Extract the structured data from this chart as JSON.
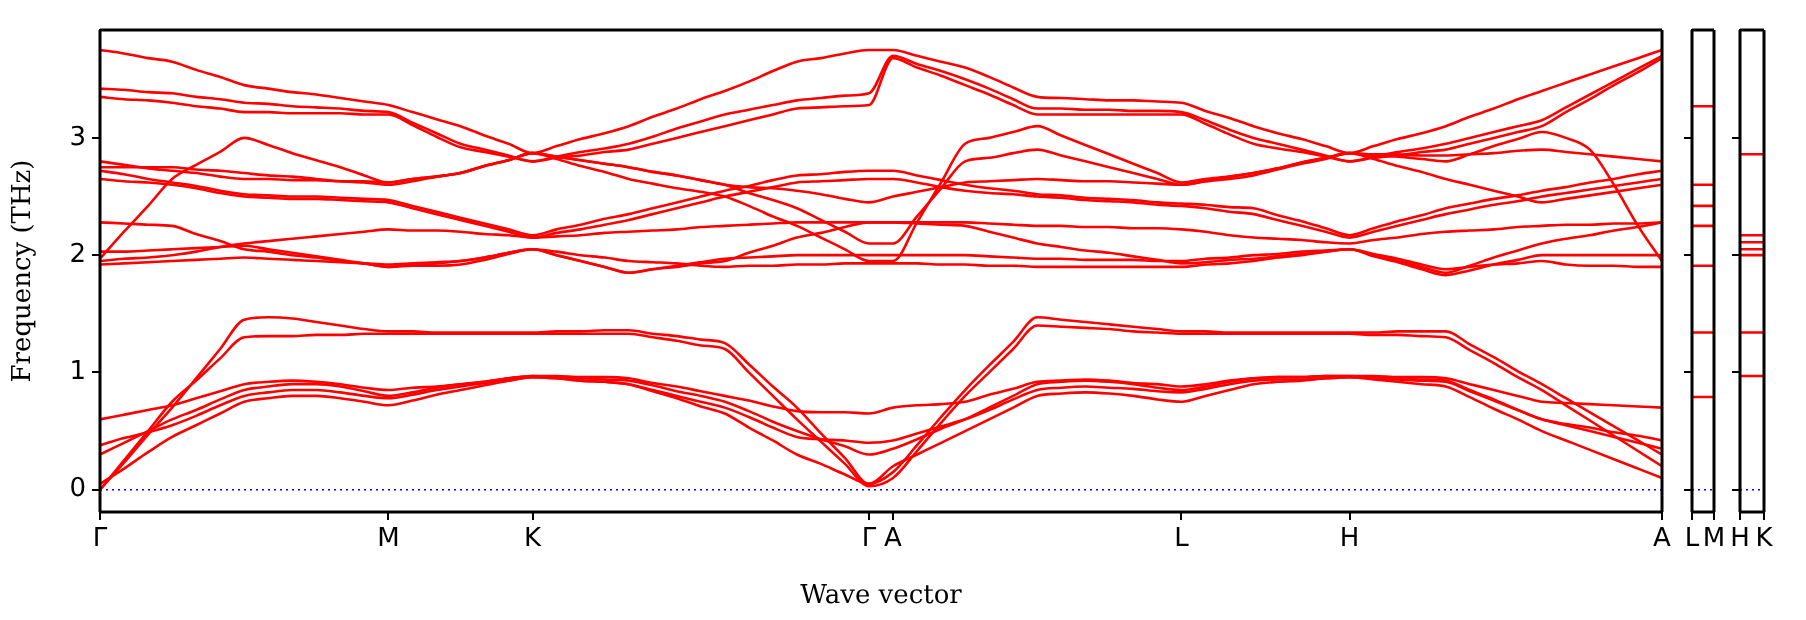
{
  "chart_data": [
    {
      "type": "line",
      "xlabel": "Wave vector",
      "ylabel": "Frequency (THz)",
      "ylim": [
        -0.19,
        3.92
      ],
      "yticks": [
        0,
        1,
        2,
        3
      ],
      "categories": [
        "Γ",
        null,
        null,
        null,
        null,
        null,
        null,
        null,
        null,
        null,
        null,
        null,
        "M",
        null,
        null,
        null,
        null,
        null,
        "K",
        null,
        null,
        null,
        null,
        null,
        null,
        null,
        null,
        null,
        null,
        null,
        null,
        null,
        "Γ",
        "A",
        null,
        null,
        null,
        null,
        null,
        null,
        null,
        null,
        null,
        null,
        null,
        "L",
        null,
        null,
        null,
        null,
        null,
        null,
        "H",
        null,
        null,
        null,
        null,
        null,
        null,
        null,
        null,
        null,
        null,
        null,
        null,
        "A"
      ],
      "ref_lines": [
        {
          "axis": "y",
          "value": 0,
          "color": "#0000ff",
          "line_style": "dotted"
        }
      ],
      "series": [
        {
          "color": "#ff0000",
          "values": [
            0,
            0.25,
            0.5,
            0.75,
            0.93,
            1.12,
            1.3,
            1.31,
            1.31,
            1.32,
            1.32,
            1.33,
            1.33,
            1.33,
            1.33,
            1.33,
            1.33,
            1.33,
            1.33,
            1.33,
            1.33,
            1.33,
            1.33,
            1.3,
            1.27,
            1.23,
            1.2,
            1.0,
            0.8,
            0.6,
            0.41,
            0.22,
            0.03,
            0.1,
            0.33,
            0.57,
            0.8,
            1.0,
            1.2,
            1.4,
            1.39,
            1.38,
            1.37,
            1.35,
            1.34,
            1.33,
            1.33,
            1.33,
            1.33,
            1.33,
            1.33,
            1.33,
            1.33,
            1.32,
            1.32,
            1.31,
            1.3,
            1.19,
            1.08,
            0.96,
            0.85,
            0.72,
            0.59,
            0.46,
            0.33,
            0.2
          ]
        },
        {
          "color": "#ff0000",
          "values": [
            0,
            0.23,
            0.47,
            0.7,
            0.95,
            1.2,
            1.45,
            1.47,
            1.46,
            1.43,
            1.4,
            1.37,
            1.35,
            1.35,
            1.34,
            1.34,
            1.34,
            1.34,
            1.34,
            1.35,
            1.35,
            1.36,
            1.36,
            1.33,
            1.31,
            1.28,
            1.25,
            1.07,
            0.88,
            0.7,
            0.48,
            0.27,
            0.05,
            0.15,
            0.38,
            0.62,
            0.85,
            1.06,
            1.26,
            1.47,
            1.45,
            1.43,
            1.41,
            1.39,
            1.37,
            1.35,
            1.35,
            1.34,
            1.34,
            1.34,
            1.34,
            1.34,
            1.34,
            1.34,
            1.35,
            1.35,
            1.35,
            1.24,
            1.13,
            1.01,
            0.9,
            0.78,
            0.66,
            0.54,
            0.42,
            0.3
          ]
        },
        {
          "color": "#ff0000",
          "values": [
            0.3,
            0.4,
            0.5,
            0.6,
            0.68,
            0.77,
            0.85,
            0.88,
            0.9,
            0.9,
            0.88,
            0.84,
            0.8,
            0.83,
            0.87,
            0.9,
            0.92,
            0.95,
            0.97,
            0.96,
            0.95,
            0.94,
            0.93,
            0.89,
            0.84,
            0.8,
            0.75,
            0.67,
            0.58,
            0.5,
            0.43,
            0.37,
            0.3,
            0.35,
            0.43,
            0.52,
            0.6,
            0.7,
            0.8,
            0.9,
            0.92,
            0.93,
            0.92,
            0.9,
            0.87,
            0.85,
            0.88,
            0.92,
            0.95,
            0.96,
            0.96,
            0.97,
            0.97,
            0.96,
            0.95,
            0.94,
            0.93,
            0.85,
            0.77,
            0.68,
            0.6,
            0.55,
            0.5,
            0.45,
            0.4,
            0.35
          ]
        },
        {
          "color": "#ff0000",
          "values": [
            0.05,
            0.18,
            0.32,
            0.45,
            0.55,
            0.65,
            0.75,
            0.78,
            0.8,
            0.8,
            0.78,
            0.75,
            0.72,
            0.76,
            0.81,
            0.85,
            0.89,
            0.93,
            0.96,
            0.95,
            0.93,
            0.92,
            0.9,
            0.84,
            0.78,
            0.71,
            0.65,
            0.53,
            0.42,
            0.3,
            0.22,
            0.13,
            0.05,
            0.2,
            0.3,
            0.4,
            0.5,
            0.6,
            0.7,
            0.8,
            0.82,
            0.83,
            0.82,
            0.8,
            0.77,
            0.75,
            0.8,
            0.85,
            0.9,
            0.92,
            0.93,
            0.95,
            0.96,
            0.94,
            0.92,
            0.9,
            0.88,
            0.79,
            0.69,
            0.6,
            0.5,
            0.42,
            0.34,
            0.26,
            0.18,
            0.1
          ]
        },
        {
          "color": "#ff0000",
          "values": [
            0.6,
            0.64,
            0.68,
            0.72,
            0.78,
            0.84,
            0.9,
            0.92,
            0.93,
            0.92,
            0.9,
            0.87,
            0.85,
            0.87,
            0.88,
            0.9,
            0.92,
            0.95,
            0.97,
            0.97,
            0.96,
            0.96,
            0.95,
            0.91,
            0.88,
            0.84,
            0.8,
            0.76,
            0.71,
            0.67,
            0.66,
            0.66,
            0.65,
            0.7,
            0.72,
            0.73,
            0.75,
            0.81,
            0.86,
            0.92,
            0.93,
            0.94,
            0.93,
            0.91,
            0.9,
            0.88,
            0.9,
            0.93,
            0.95,
            0.96,
            0.96,
            0.97,
            0.97,
            0.97,
            0.96,
            0.96,
            0.95,
            0.9,
            0.85,
            0.8,
            0.75,
            0.74,
            0.73,
            0.72,
            0.71,
            0.7
          ]
        },
        {
          "color": "#ff0000",
          "values": [
            0.38,
            0.44,
            0.49,
            0.55,
            0.63,
            0.72,
            0.8,
            0.83,
            0.85,
            0.85,
            0.83,
            0.8,
            0.78,
            0.81,
            0.85,
            0.88,
            0.91,
            0.93,
            0.96,
            0.95,
            0.93,
            0.92,
            0.9,
            0.85,
            0.8,
            0.75,
            0.7,
            0.62,
            0.53,
            0.45,
            0.43,
            0.42,
            0.4,
            0.42,
            0.48,
            0.54,
            0.6,
            0.68,
            0.77,
            0.85,
            0.87,
            0.88,
            0.87,
            0.86,
            0.84,
            0.83,
            0.86,
            0.9,
            0.93,
            0.94,
            0.94,
            0.95,
            0.96,
            0.95,
            0.94,
            0.93,
            0.92,
            0.84,
            0.76,
            0.68,
            0.6,
            0.56,
            0.53,
            0.49,
            0.46,
            0.42
          ]
        },
        {
          "color": "#ff0000",
          "values": [
            1.92,
            1.93,
            1.94,
            1.95,
            1.96,
            1.97,
            1.98,
            1.97,
            1.96,
            1.95,
            1.94,
            1.93,
            1.92,
            1.93,
            1.94,
            1.95,
            1.98,
            2.02,
            2.05,
            2.03,
            2.0,
            1.98,
            1.95,
            1.94,
            1.93,
            1.91,
            1.9,
            1.91,
            1.91,
            1.92,
            1.92,
            1.93,
            1.93,
            1.93,
            1.93,
            1.92,
            1.92,
            1.91,
            1.91,
            1.9,
            1.9,
            1.9,
            1.9,
            1.9,
            1.9,
            1.9,
            1.92,
            1.93,
            1.95,
            1.98,
            2.0,
            2.03,
            2.05,
            2.01,
            1.97,
            1.92,
            1.88,
            1.9,
            1.92,
            1.93,
            1.95,
            1.92,
            1.91,
            1.91,
            1.9,
            1.9
          ]
        },
        {
          "color": "#ff0000",
          "values": [
            2.03,
            2.03,
            2.04,
            2.05,
            2.06,
            2.07,
            2.08,
            2.05,
            2.02,
            1.99,
            1.96,
            1.93,
            1.9,
            1.91,
            1.91,
            1.92,
            1.96,
            2.01,
            2.05,
            2.0,
            1.95,
            1.9,
            1.85,
            1.88,
            1.91,
            1.94,
            1.97,
            1.98,
            1.99,
            2.0,
            2.0,
            2.0,
            2.0,
            2.0,
            2.0,
            2.0,
            2.0,
            1.99,
            1.98,
            1.97,
            1.97,
            1.96,
            1.96,
            1.96,
            1.95,
            1.95,
            1.97,
            1.98,
            2.0,
            2.01,
            2.03,
            2.04,
            2.05,
            1.99,
            1.94,
            1.88,
            1.83,
            1.87,
            1.92,
            1.96,
            2.0,
            2.0,
            2.0,
            2.0,
            2.0,
            2.0
          ]
        },
        {
          "color": "#ff0000",
          "values": [
            2.28,
            2.27,
            2.26,
            2.25,
            2.18,
            2.12,
            2.05,
            2.03,
            2.0,
            1.98,
            1.95,
            1.93,
            1.9,
            1.92,
            1.93,
            1.95,
            1.98,
            2.02,
            2.05,
            2.0,
            1.95,
            1.9,
            1.85,
            1.88,
            1.9,
            1.93,
            1.95,
            2.02,
            2.08,
            2.15,
            2.19,
            2.24,
            2.28,
            2.28,
            2.27,
            2.26,
            2.25,
            2.2,
            2.15,
            2.1,
            2.07,
            2.04,
            2.02,
            1.99,
            1.96,
            1.93,
            1.94,
            1.96,
            1.97,
            1.99,
            2.01,
            2.03,
            2.05,
            2.0,
            1.95,
            1.9,
            1.85,
            1.91,
            1.98,
            2.04,
            2.1,
            2.14,
            2.17,
            2.21,
            2.24,
            2.28
          ]
        },
        {
          "color": "#ff0000",
          "values": [
            1.95,
            1.97,
            1.98,
            2.0,
            2.03,
            2.07,
            2.1,
            2.12,
            2.14,
            2.16,
            2.18,
            2.2,
            2.22,
            2.21,
            2.21,
            2.2,
            2.18,
            2.17,
            2.15,
            2.16,
            2.17,
            2.19,
            2.2,
            2.21,
            2.22,
            2.24,
            2.25,
            2.26,
            2.27,
            2.28,
            2.28,
            2.28,
            2.28,
            2.28,
            2.28,
            2.28,
            2.28,
            2.27,
            2.26,
            2.25,
            2.25,
            2.24,
            2.24,
            2.23,
            2.23,
            2.22,
            2.2,
            2.17,
            2.15,
            2.14,
            2.13,
            2.11,
            2.1,
            2.13,
            2.15,
            2.18,
            2.2,
            2.21,
            2.22,
            2.24,
            2.25,
            2.26,
            2.26,
            2.27,
            2.27,
            2.28
          ]
        },
        {
          "color": "#ff0000",
          "values": [
            2.65,
            2.63,
            2.62,
            2.6,
            2.57,
            2.53,
            2.5,
            2.49,
            2.48,
            2.48,
            2.47,
            2.46,
            2.45,
            2.4,
            2.35,
            2.3,
            2.25,
            2.2,
            2.15,
            2.19,
            2.22,
            2.26,
            2.3,
            2.35,
            2.4,
            2.45,
            2.5,
            2.54,
            2.58,
            2.62,
            2.63,
            2.64,
            2.65,
            2.65,
            2.62,
            2.58,
            2.55,
            2.53,
            2.52,
            2.5,
            2.49,
            2.47,
            2.46,
            2.45,
            2.43,
            2.42,
            2.4,
            2.37,
            2.35,
            2.3,
            2.25,
            2.2,
            2.15,
            2.2,
            2.25,
            2.3,
            2.35,
            2.39,
            2.43,
            2.46,
            2.5,
            2.53,
            2.56,
            2.59,
            2.62,
            2.65
          ]
        },
        {
          "color": "#ff0000",
          "values": [
            2.72,
            2.69,
            2.65,
            2.62,
            2.59,
            2.55,
            2.52,
            2.51,
            2.5,
            2.5,
            2.49,
            2.48,
            2.47,
            2.42,
            2.37,
            2.32,
            2.27,
            2.22,
            2.17,
            2.22,
            2.26,
            2.31,
            2.35,
            2.4,
            2.45,
            2.5,
            2.55,
            2.59,
            2.64,
            2.68,
            2.69,
            2.71,
            2.72,
            2.72,
            2.68,
            2.64,
            2.6,
            2.57,
            2.55,
            2.52,
            2.51,
            2.49,
            2.48,
            2.47,
            2.45,
            2.44,
            2.43,
            2.41,
            2.4,
            2.34,
            2.29,
            2.23,
            2.17,
            2.23,
            2.29,
            2.34,
            2.4,
            2.44,
            2.48,
            2.51,
            2.55,
            2.58,
            2.62,
            2.65,
            2.69,
            2.72
          ]
        },
        {
          "color": "#ff0000",
          "values": [
            1.97,
            2.2,
            2.42,
            2.65,
            2.77,
            2.88,
            3.0,
            2.94,
            2.87,
            2.81,
            2.75,
            2.68,
            2.62,
            2.65,
            2.67,
            2.7,
            2.76,
            2.81,
            2.87,
            2.82,
            2.76,
            2.71,
            2.65,
            2.61,
            2.57,
            2.54,
            2.5,
            2.42,
            2.33,
            2.25,
            2.15,
            2.05,
            1.95,
            1.95,
            2.28,
            2.62,
            2.95,
            3.0,
            3.05,
            3.1,
            3.02,
            2.94,
            2.86,
            2.78,
            2.7,
            2.62,
            2.65,
            2.67,
            2.7,
            2.74,
            2.79,
            2.83,
            2.87,
            2.85,
            2.84,
            2.82,
            2.8,
            2.86,
            2.93,
            2.99,
            3.05,
            3.0,
            2.9,
            2.6,
            2.25,
            1.95
          ]
        },
        {
          "color": "#ff0000",
          "values": [
            2.8,
            2.77,
            2.74,
            2.72,
            2.7,
            2.67,
            2.65,
            2.65,
            2.64,
            2.64,
            2.63,
            2.63,
            2.62,
            2.65,
            2.67,
            2.7,
            2.76,
            2.81,
            2.87,
            2.84,
            2.81,
            2.78,
            2.75,
            2.71,
            2.68,
            2.64,
            2.6,
            2.53,
            2.47,
            2.4,
            2.3,
            2.2,
            2.1,
            2.1,
            2.33,
            2.57,
            2.8,
            2.83,
            2.87,
            2.9,
            2.85,
            2.8,
            2.75,
            2.7,
            2.65,
            2.6,
            2.63,
            2.65,
            2.68,
            2.73,
            2.78,
            2.82,
            2.87,
            2.86,
            2.86,
            2.85,
            2.85,
            2.86,
            2.87,
            2.89,
            2.9,
            2.88,
            2.86,
            2.84,
            2.82,
            2.8
          ]
        },
        {
          "color": "#ff0000",
          "values": [
            2.75,
            2.75,
            2.75,
            2.75,
            2.73,
            2.72,
            2.7,
            2.68,
            2.67,
            2.65,
            2.63,
            2.62,
            2.6,
            2.63,
            2.67,
            2.7,
            2.76,
            2.81,
            2.87,
            2.84,
            2.81,
            2.78,
            2.75,
            2.71,
            2.68,
            2.64,
            2.6,
            2.58,
            2.57,
            2.55,
            2.52,
            2.48,
            2.45,
            2.5,
            2.54,
            2.58,
            2.62,
            2.63,
            2.64,
            2.65,
            2.64,
            2.63,
            2.63,
            2.62,
            2.61,
            2.6,
            2.63,
            2.67,
            2.7,
            2.74,
            2.79,
            2.83,
            2.87,
            2.82,
            2.76,
            2.71,
            2.65,
            2.6,
            2.55,
            2.5,
            2.45,
            2.48,
            2.51,
            2.54,
            2.57,
            2.6
          ]
        },
        {
          "color": "#ff0000",
          "values": [
            3.75,
            3.72,
            3.68,
            3.65,
            3.58,
            3.52,
            3.45,
            3.42,
            3.39,
            3.37,
            3.34,
            3.31,
            3.28,
            3.22,
            3.16,
            3.1,
            3.02,
            2.95,
            2.87,
            2.93,
            2.99,
            3.04,
            3.1,
            3.18,
            3.25,
            3.33,
            3.4,
            3.48,
            3.57,
            3.65,
            3.68,
            3.72,
            3.75,
            3.75,
            3.7,
            3.65,
            3.6,
            3.52,
            3.43,
            3.35,
            3.34,
            3.33,
            3.32,
            3.32,
            3.31,
            3.3,
            3.23,
            3.17,
            3.1,
            3.04,
            2.99,
            2.93,
            2.87,
            2.93,
            2.99,
            3.04,
            3.1,
            3.18,
            3.25,
            3.33,
            3.4,
            3.47,
            3.54,
            3.61,
            3.68,
            3.75
          ]
        },
        {
          "color": "#ff0000",
          "values": [
            3.42,
            3.41,
            3.39,
            3.38,
            3.35,
            3.33,
            3.3,
            3.29,
            3.27,
            3.26,
            3.25,
            3.23,
            3.22,
            3.13,
            3.04,
            2.95,
            2.9,
            2.85,
            2.8,
            2.84,
            2.88,
            2.91,
            2.95,
            3.01,
            3.08,
            3.14,
            3.2,
            3.24,
            3.28,
            3.32,
            3.34,
            3.36,
            3.38,
            3.7,
            3.63,
            3.57,
            3.5,
            3.42,
            3.33,
            3.25,
            3.25,
            3.24,
            3.24,
            3.23,
            3.23,
            3.22,
            3.15,
            3.07,
            3.0,
            2.95,
            2.9,
            2.85,
            2.8,
            2.84,
            2.88,
            2.91,
            2.95,
            3.0,
            3.05,
            3.1,
            3.15,
            3.26,
            3.37,
            3.48,
            3.59,
            3.7
          ]
        },
        {
          "color": "#ff0000",
          "values": [
            3.35,
            3.33,
            3.32,
            3.3,
            3.27,
            3.25,
            3.22,
            3.22,
            3.21,
            3.21,
            3.21,
            3.2,
            3.2,
            3.11,
            3.01,
            2.92,
            2.88,
            2.84,
            2.8,
            2.83,
            2.85,
            2.88,
            2.9,
            2.95,
            3.0,
            3.05,
            3.1,
            3.15,
            3.2,
            3.25,
            3.26,
            3.27,
            3.28,
            3.68,
            3.6,
            3.53,
            3.45,
            3.37,
            3.28,
            3.2,
            3.2,
            3.2,
            3.2,
            3.2,
            3.2,
            3.2,
            3.12,
            3.03,
            2.95,
            2.91,
            2.88,
            2.84,
            2.8,
            2.83,
            2.85,
            2.88,
            2.9,
            2.95,
            3.0,
            3.05,
            3.1,
            3.22,
            3.33,
            3.45,
            3.56,
            3.68
          ]
        }
      ]
    },
    {
      "type": "line",
      "ylim": [
        -0.19,
        3.92
      ],
      "yticks": [
        0,
        1,
        2,
        3
      ],
      "tick_labels": "x",
      "categories": [
        "L",
        "M"
      ],
      "ref_lines": [
        {
          "axis": "y",
          "value": 0,
          "color": "#0000ff",
          "line_style": "dotted"
        }
      ],
      "series": [
        {
          "color": "#ff0000",
          "values": [
            3.27,
            3.27
          ]
        },
        {
          "color": "#ff0000",
          "values": [
            2.6,
            2.6
          ]
        },
        {
          "color": "#ff0000",
          "values": [
            2.42,
            2.42
          ]
        },
        {
          "color": "#ff0000",
          "values": [
            2.25,
            2.25
          ]
        },
        {
          "color": "#ff0000",
          "values": [
            1.91,
            1.91
          ]
        },
        {
          "color": "#ff0000",
          "values": [
            1.34,
            1.34
          ]
        },
        {
          "color": "#ff0000",
          "values": [
            0.79,
            0.79
          ]
        }
      ]
    },
    {
      "type": "line",
      "ylim": [
        -0.19,
        3.92
      ],
      "yticks": [
        0,
        1,
        2,
        3
      ],
      "tick_labels": "x",
      "categories": [
        "H",
        "K"
      ],
      "ref_lines": [
        {
          "axis": "y",
          "value": 0,
          "color": "#0000ff",
          "line_style": "dotted"
        }
      ],
      "series": [
        {
          "color": "#ff0000",
          "values": [
            2.86,
            2.86
          ]
        },
        {
          "color": "#ff0000",
          "values": [
            2.17,
            2.17
          ]
        },
        {
          "color": "#ff0000",
          "values": [
            2.11,
            2.11
          ]
        },
        {
          "color": "#ff0000",
          "values": [
            2.05,
            2.05
          ]
        },
        {
          "color": "#ff0000",
          "values": [
            2,
            2
          ]
        },
        {
          "color": "#ff0000",
          "values": [
            1.34,
            1.34
          ]
        },
        {
          "color": "#ff0000",
          "values": [
            0.97,
            0.97
          ]
        }
      ]
    }
  ]
}
